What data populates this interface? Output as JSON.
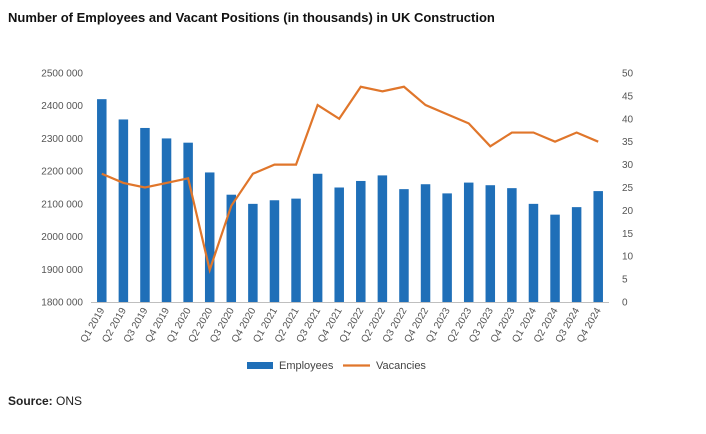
{
  "title": "Number of Employees and Vacant Positions (in thousands) in UK Construction",
  "source": {
    "label": "Source:",
    "value": "ONS"
  },
  "chart_data": {
    "type": "bar",
    "categories": [
      "Q1 2019",
      "Q2 2019",
      "Q3 2019",
      "Q4 2019",
      "Q1 2020",
      "Q2 2020",
      "Q3 2020",
      "Q4 2020",
      "Q1 2021",
      "Q2 2021",
      "Q3 2021",
      "Q4 2021",
      "Q1 2022",
      "Q2 2022",
      "Q3 2022",
      "Q4 2022",
      "Q1 2023",
      "Q2 2023",
      "Q3 2023",
      "Q4 2023",
      "Q1 2024",
      "Q2 2024",
      "Q3 2024",
      "Q4 2024"
    ],
    "series": [
      {
        "name": "Employees",
        "type": "bar",
        "axis": "left",
        "color": "#1f6fb8",
        "values": [
          2420000,
          2358000,
          2332000,
          2300000,
          2287000,
          2196000,
          2128000,
          2100000,
          2111000,
          2116000,
          2192000,
          2150000,
          2170000,
          2187000,
          2145000,
          2160000,
          2132000,
          2165000,
          2157000,
          2148000,
          2100000,
          2067000,
          2090000,
          2139000
        ]
      },
      {
        "name": "Vacancies",
        "type": "line",
        "axis": "right",
        "color": "#e0762b",
        "values": [
          28,
          26,
          25,
          26,
          27,
          7,
          21,
          28,
          30,
          30,
          43,
          40,
          47,
          46,
          47,
          43,
          41,
          39,
          34,
          37,
          37,
          35,
          37,
          35
        ]
      }
    ],
    "y_left": {
      "min": 1800000,
      "max": 2500000,
      "ticks": [
        1800000,
        1900000,
        2000000,
        2100000,
        2200000,
        2300000,
        2400000,
        2500000
      ],
      "tick_labels": [
        "1800 000",
        "1900 000",
        "2000 000",
        "2100 000",
        "2200 000",
        "2300 000",
        "2400 000",
        "2500 000"
      ]
    },
    "y_right": {
      "min": 0,
      "max": 50,
      "ticks": [
        0,
        5,
        10,
        15,
        20,
        25,
        30,
        35,
        40,
        45,
        50
      ],
      "tick_labels": [
        "0",
        "5",
        "10",
        "15",
        "20",
        "25",
        "30",
        "35",
        "40",
        "45",
        "50"
      ]
    },
    "xlabel": "",
    "ylabel": "",
    "grid": false,
    "legend": "bottom-center"
  }
}
